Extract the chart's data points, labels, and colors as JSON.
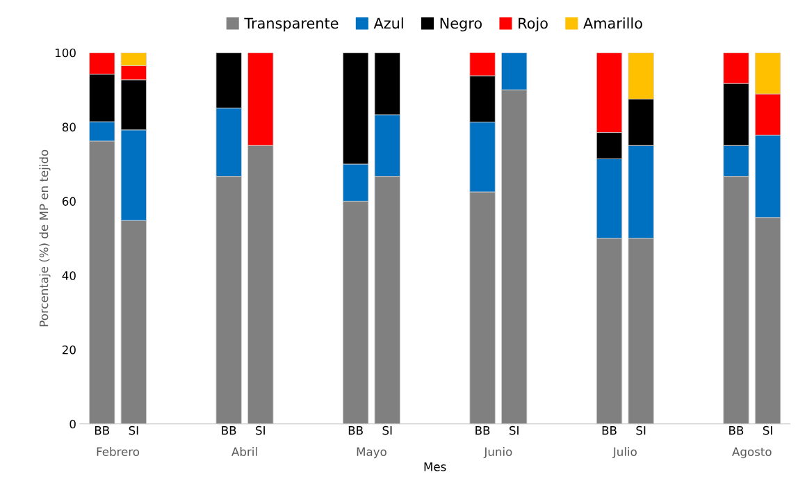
{
  "chart_data": {
    "type": "bar",
    "stacked": true,
    "xlabel": "Mes",
    "ylabel": "Porcentaje (%) de MP en tejido",
    "categories": [
      "BB",
      "SI",
      "BB",
      "SI",
      "BB",
      "SI",
      "BB",
      "SI",
      "BB",
      "SI",
      "BB",
      "SI"
    ],
    "annotations": [
      "Febrero",
      "Abril",
      "Mayo",
      "Junio",
      "Julio",
      "Agosto"
    ],
    "series": [
      {
        "name": "Transparente",
        "color": "#808080",
        "values": [
          76.2,
          54.8,
          66.7,
          75,
          60,
          66.7,
          62.5,
          90,
          50,
          50,
          66.7,
          55.6
        ]
      },
      {
        "name": "Azul",
        "color": "#0070c0",
        "values": [
          5.2,
          24.4,
          18.4,
          null,
          10,
          16.6,
          18.8,
          10,
          21.4,
          25,
          8.3,
          22.2
        ]
      },
      {
        "name": "Negro",
        "color": "#000000",
        "values": [
          12.8,
          13.5,
          14.9,
          null,
          30,
          16.7,
          12.5,
          null,
          7.1,
          12.5,
          16.7,
          null
        ]
      },
      {
        "name": "Rojo",
        "color": "#ff0000",
        "values": [
          5.8,
          3.8,
          null,
          25,
          null,
          null,
          6.3,
          null,
          21.5,
          null,
          8.3,
          11.1
        ]
      },
      {
        "name": "Amarillo",
        "color": "#ffc000",
        "values": [
          null,
          3.5,
          null,
          null,
          null,
          null,
          null,
          null,
          null,
          12.5,
          null,
          11.1
        ]
      }
    ],
    "ylim": [
      0,
      100
    ],
    "yticks": [
      0,
      20,
      40,
      60,
      80,
      100
    ],
    "grid": false,
    "legend": "top"
  }
}
